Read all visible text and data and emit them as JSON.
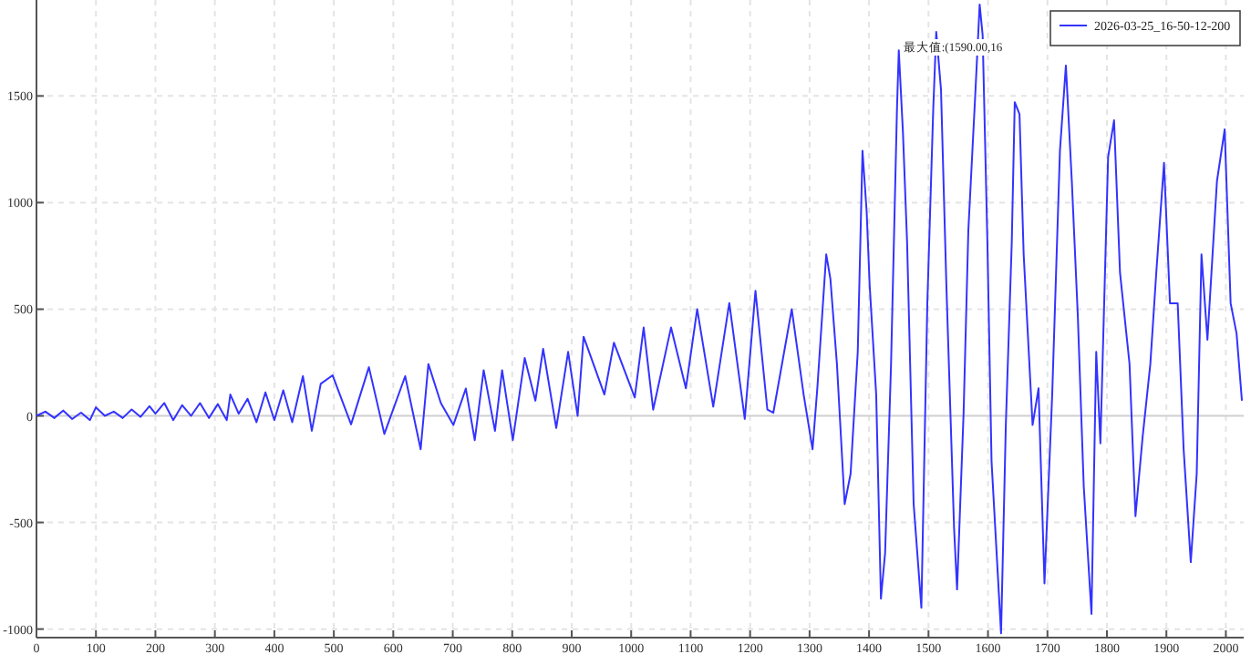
{
  "chart_data": {
    "type": "line",
    "annotations": [
      "最大值:(1590.00,16"
    ],
    "xlim": [
      0,
      2030
    ],
    "ylim": [
      -1040,
      1950
    ],
    "xticks": [
      0,
      100,
      200,
      300,
      400,
      500,
      600,
      700,
      800,
      900,
      1000,
      1100,
      1200,
      1300,
      1400,
      1500,
      1600,
      1700,
      1800,
      1900,
      2000
    ],
    "yticks": [
      -1000,
      -500,
      0,
      500,
      1000,
      1500
    ],
    "grid": true,
    "legend": "top right",
    "series": [
      {
        "name": "2026-03-25_16-50-12-200",
        "color": "#3333ff",
        "x": [
          0,
          15,
          30,
          45,
          60,
          75,
          90,
          100,
          115,
          130,
          145,
          160,
          175,
          190,
          200,
          215,
          230,
          245,
          260,
          275,
          290,
          305,
          320,
          326,
          340,
          355,
          370,
          385,
          400,
          415,
          430,
          448,
          463,
          478,
          498,
          529,
          559,
          585,
          620,
          646,
          659,
          680,
          701,
          722,
          737,
          752,
          771,
          783,
          801,
          821,
          839,
          852,
          874,
          894,
          910,
          920,
          955,
          971,
          1006,
          1021,
          1037,
          1067,
          1092,
          1111,
          1138,
          1165,
          1191,
          1209,
          1229,
          1239,
          1270,
          1290,
          1305,
          1313,
          1328,
          1335,
          1346,
          1359,
          1369,
          1381,
          1389,
          1396,
          1401,
          1412,
          1420,
          1427,
          1437,
          1447,
          1450,
          1457,
          1464,
          1475,
          1488,
          1498,
          1508,
          1513,
          1521,
          1530,
          1543,
          1548,
          1559,
          1567,
          1579,
          1586,
          1591,
          1599,
          1606,
          1622,
          1630,
          1640,
          1645,
          1653,
          1660,
          1675,
          1685,
          1695,
          1708,
          1721,
          1731,
          1741,
          1751,
          1761,
          1774,
          1782,
          1789,
          1802,
          1812,
          1822,
          1838,
          1848,
          1860,
          1873,
          1883,
          1896,
          1906,
          1919,
          1929,
          1941,
          1951,
          1959,
          1969,
          1985,
          1998,
          2008,
          2018,
          2027
        ],
        "values": [
          0,
          20,
          -10,
          25,
          -15,
          15,
          -20,
          40,
          0,
          20,
          -10,
          30,
          -5,
          45,
          10,
          60,
          -20,
          50,
          0,
          60,
          -10,
          55,
          -20,
          100,
          10,
          80,
          -30,
          110,
          -20,
          120,
          -30,
          186,
          -70,
          150,
          190,
          -40,
          228,
          -85,
          186,
          -157,
          243,
          60,
          -43,
          128,
          -114,
          214,
          -71,
          214,
          -114,
          271,
          71,
          314,
          -57,
          300,
          0,
          371,
          100,
          343,
          86,
          414,
          29,
          414,
          129,
          500,
          43,
          529,
          -14,
          586,
          29,
          14,
          500,
          100,
          -157,
          129,
          757,
          643,
          243,
          -414,
          -271,
          300,
          1243,
          957,
          614,
          100,
          -857,
          -643,
          243,
          1443,
          1714,
          1329,
          814,
          -414,
          -900,
          528,
          1443,
          1800,
          1529,
          614,
          -529,
          -814,
          14,
          871,
          1529,
          1929,
          1786,
          814,
          -214,
          -1020,
          -43,
          814,
          1471,
          1414,
          757,
          -43,
          129,
          -786,
          100,
          1243,
          1643,
          1100,
          471,
          -329,
          -929,
          300,
          -129,
          1214,
          1386,
          671,
          243,
          -471,
          -100,
          243,
          671,
          1186,
          528,
          528,
          -157,
          -686,
          -271,
          757,
          357,
          1100,
          1343,
          528,
          386,
          71
        ]
      }
    ]
  }
}
